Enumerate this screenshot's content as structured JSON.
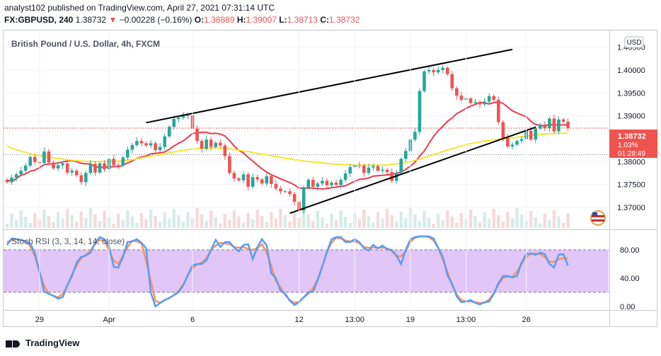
{
  "header": {
    "publish_line": "analyst102 published on TradingView.com, April 27, 2021 07:31:14 UTC",
    "symbol": "FX:GBPUSD, 240",
    "last": "1.38732",
    "change_arrow": "▼",
    "change": "−0.00228 (−0.16%)",
    "o_label": "O:",
    "o_value": "1.38889",
    "h_label": "H:",
    "h_value": "1.39007",
    "l_label": "L:",
    "l_value": "1.38713",
    "c_label": "C:",
    "c_value": "1.38732"
  },
  "footer": {
    "brand": "TradingView"
  },
  "colors": {
    "bull": "#26a69a",
    "bear": "#ef5350",
    "ma_fast": "#ef3a4d",
    "ma_slow": "#f2e635",
    "rsi_k": "#5b9cf6",
    "rsi_d": "#f7935e",
    "rsi_band": "#e1c6f7",
    "trendline": "#000000"
  },
  "chart_data": [
    {
      "type": "candlestick",
      "title": "British Pound / U.S. Dollar, 4h, FXCM",
      "currency_badge": "USD",
      "ylim": [
        1.3655,
        1.4085
      ],
      "y_ticks": [
        "1.40500",
        "1.40000",
        "1.39500",
        "1.39000",
        "1.38000",
        "1.37500",
        "1.37000"
      ],
      "last_price_label": "1.38732",
      "last_change_label": "1.03%",
      "countdown_label": "01:28:49",
      "reference_level": 1.3815,
      "x_tick_labels": [
        {
          "label": "29",
          "index": 7
        },
        {
          "label": "Apr",
          "index": 22
        },
        {
          "label": "6",
          "index": 40
        },
        {
          "label": "12",
          "index": 63
        },
        {
          "label": "13:00",
          "index": 75
        },
        {
          "label": "19",
          "index": 87
        },
        {
          "label": "13:00",
          "index": 99
        },
        {
          "label": "26",
          "index": 112
        }
      ],
      "closes": [
        1.3755,
        1.3765,
        1.3772,
        1.378,
        1.3791,
        1.381,
        1.3799,
        1.3797,
        1.3822,
        1.3798,
        1.3785,
        1.3792,
        1.3796,
        1.3776,
        1.378,
        1.377,
        1.3755,
        1.3775,
        1.3795,
        1.3776,
        1.3796,
        1.3783,
        1.3806,
        1.3792,
        1.3791,
        1.3809,
        1.3826,
        1.3836,
        1.3845,
        1.384,
        1.3835,
        1.384,
        1.3825,
        1.3832,
        1.3855,
        1.3876,
        1.3893,
        1.3896,
        1.39,
        1.3901,
        1.3872,
        1.3845,
        1.3828,
        1.3848,
        1.3832,
        1.3841,
        1.3835,
        1.3812,
        1.3775,
        1.3763,
        1.3759,
        1.3772,
        1.3745,
        1.3766,
        1.3761,
        1.3752,
        1.3768,
        1.3751,
        1.3741,
        1.3735,
        1.3735,
        1.3729,
        1.3712,
        1.3693,
        1.3742,
        1.376,
        1.3745,
        1.3752,
        1.3758,
        1.3748,
        1.3754,
        1.3749,
        1.376,
        1.3774,
        1.3788,
        1.3792,
        1.3791,
        1.3775,
        1.3787,
        1.379,
        1.378,
        1.3782,
        1.3777,
        1.3758,
        1.3776,
        1.3806,
        1.3823,
        1.3848,
        1.3865,
        1.3954,
        1.3997,
        1.4,
        1.3995,
        1.4,
        1.4005,
        1.3991,
        1.396,
        1.3944,
        1.3935,
        1.3938,
        1.3928,
        1.393,
        1.3925,
        1.3931,
        1.3943,
        1.3935,
        1.3886,
        1.3852,
        1.3833,
        1.3837,
        1.3845,
        1.3849,
        1.3867,
        1.3848,
        1.3872,
        1.3881,
        1.3873,
        1.3894,
        1.3866,
        1.3892,
        1.3887,
        1.3873
      ],
      "series": [
        {
          "name": "MA fast",
          "values": [
            1.376,
            1.3756,
            1.3763,
            1.377,
            1.3773,
            1.3779,
            1.3781,
            1.3787,
            1.3793,
            1.3795,
            1.3795,
            1.3797,
            1.3799,
            1.3801,
            1.3802,
            1.38,
            1.3796,
            1.3795,
            1.3795,
            1.3789,
            1.3787,
            1.3788,
            1.3788,
            1.3789,
            1.3789,
            1.3792,
            1.3797,
            1.3801,
            1.3807,
            1.381,
            1.3812,
            1.3817,
            1.3818,
            1.3819,
            1.3821,
            1.3827,
            1.3834,
            1.384,
            1.3845,
            1.3853,
            1.3861,
            1.3863,
            1.3864,
            1.3864,
            1.3861,
            1.3862,
            1.386,
            1.3856,
            1.3846,
            1.3834,
            1.3824,
            1.3819,
            1.3809,
            1.3801,
            1.3792,
            1.3784,
            1.3777,
            1.3771,
            1.3767,
            1.3762,
            1.3758,
            1.3754,
            1.3749,
            1.3742,
            1.3742,
            1.3742,
            1.3742,
            1.3741,
            1.374,
            1.3741,
            1.3743,
            1.3744,
            1.3746,
            1.3747,
            1.3752,
            1.3757,
            1.3761,
            1.3762,
            1.3764,
            1.3768,
            1.3769,
            1.377,
            1.3771,
            1.3772,
            1.3774,
            1.3777,
            1.3783,
            1.379,
            1.3799,
            1.3812,
            1.3823,
            1.3839,
            1.3855,
            1.3867,
            1.3877,
            1.3888,
            1.3895,
            1.3905,
            1.391,
            1.3916,
            1.3921,
            1.3925,
            1.3929,
            1.3928,
            1.3926,
            1.3929,
            1.393,
            1.3927,
            1.3919,
            1.3911,
            1.3906,
            1.3902,
            1.3898,
            1.3888,
            1.3881,
            1.3879,
            1.3878,
            1.3881,
            1.388,
            1.388,
            1.388,
            1.388
          ]
        },
        {
          "name": "MA slow",
          "values": [
            1.3834,
            1.3829,
            1.3826,
            1.3823,
            1.382,
            1.3817,
            1.3815,
            1.3813,
            1.3811,
            1.381,
            1.3808,
            1.3807,
            1.3805,
            1.3804,
            1.3803,
            1.3802,
            1.3801,
            1.3801,
            1.38,
            1.38,
            1.38,
            1.38,
            1.38,
            1.3801,
            1.3801,
            1.3802,
            1.3803,
            1.3804,
            1.3806,
            1.3808,
            1.381,
            1.3812,
            1.3814,
            1.3815,
            1.3817,
            1.3819,
            1.3821,
            1.3823,
            1.3824,
            1.3826,
            1.3827,
            1.3828,
            1.3829,
            1.3829,
            1.383,
            1.383,
            1.3829,
            1.3829,
            1.3828,
            1.3826,
            1.3825,
            1.3823,
            1.3822,
            1.382,
            1.3818,
            1.3816,
            1.3815,
            1.3813,
            1.3811,
            1.3809,
            1.3807,
            1.3806,
            1.3804,
            1.3803,
            1.3801,
            1.38,
            1.3799,
            1.3798,
            1.3797,
            1.3796,
            1.3795,
            1.3794,
            1.3794,
            1.3793,
            1.3793,
            1.3792,
            1.3792,
            1.3792,
            1.3792,
            1.3792,
            1.3792,
            1.3792,
            1.3793,
            1.3794,
            1.3795,
            1.3796,
            1.3798,
            1.38,
            1.3803,
            1.3805,
            1.3809,
            1.3812,
            1.3815,
            1.3818,
            1.3822,
            1.3825,
            1.3828,
            1.3831,
            1.3834,
            1.3837,
            1.3839,
            1.3841,
            1.3843,
            1.3845,
            1.3846,
            1.3848,
            1.3849,
            1.385,
            1.3851,
            1.3852,
            1.3853,
            1.3854,
            1.3855,
            1.3857,
            1.3858,
            1.3859,
            1.386,
            1.3861,
            1.3861,
            1.3862,
            1.3862,
            1.3862
          ]
        }
      ],
      "trendlines": [
        {
          "from": [
            30,
            1.3885
          ],
          "to": [
            109,
            1.4045
          ]
        },
        {
          "from": [
            61,
            1.3687
          ],
          "to": [
            114,
            1.3875
          ]
        }
      ]
    },
    {
      "type": "line",
      "title": "Stoch RSI (3, 3, 14, 14, close)",
      "ylim": [
        -5,
        105
      ],
      "y_ticks": [
        "80.00",
        "40.00",
        "0.00"
      ],
      "bands": [
        20,
        80
      ],
      "series": [
        {
          "name": "%K",
          "values": [
            87,
            96,
            95,
            94,
            92,
            89,
            75,
            49,
            21,
            18,
            15,
            11,
            13,
            30,
            43,
            62,
            70,
            72,
            76,
            90,
            98,
            95,
            85,
            56,
            55,
            70,
            91,
            92,
            95,
            90,
            82,
            20,
            0,
            5,
            9,
            12,
            16,
            20,
            30,
            44,
            58,
            60,
            60,
            65,
            80,
            94,
            84,
            91,
            91,
            83,
            78,
            87,
            88,
            67,
            84,
            95,
            86,
            47,
            40,
            22,
            18,
            8,
            2,
            6,
            13,
            20,
            21,
            37,
            56,
            77,
            95,
            98,
            98,
            91,
            91,
            95,
            91,
            82,
            79,
            87,
            82,
            86,
            81,
            80,
            72,
            60,
            80,
            95,
            98,
            99,
            99,
            99,
            96,
            83,
            70,
            44,
            32,
            14,
            6,
            7,
            9,
            5,
            3,
            6,
            7,
            18,
            33,
            43,
            43,
            41,
            43,
            62,
            74,
            75,
            73,
            76,
            74,
            60,
            55,
            73,
            74,
            58
          ]
        },
        {
          "name": "%D",
          "values": [
            91,
            94,
            95,
            94,
            92,
            85,
            71,
            48,
            29,
            18,
            15,
            13,
            18,
            29,
            45,
            58,
            68,
            73,
            79,
            88,
            94,
            93,
            79,
            65,
            60,
            72,
            84,
            93,
            92,
            89,
            64,
            36,
            8,
            5,
            9,
            12,
            16,
            22,
            31,
            44,
            54,
            59,
            62,
            68,
            80,
            86,
            90,
            89,
            88,
            84,
            83,
            84,
            81,
            80,
            82,
            88,
            76,
            58,
            36,
            27,
            16,
            9,
            5,
            7,
            13,
            18,
            26,
            38,
            57,
            76,
            90,
            97,
            96,
            93,
            92,
            92,
            89,
            84,
            83,
            83,
            83,
            83,
            82,
            78,
            71,
            71,
            78,
            91,
            97,
            99,
            99,
            98,
            93,
            83,
            66,
            49,
            30,
            17,
            9,
            7,
            7,
            6,
            5,
            5,
            10,
            19,
            31,
            40,
            42,
            42,
            49,
            60,
            70,
            74,
            75,
            74,
            70,
            63,
            63,
            67,
            68,
            68
          ]
        }
      ]
    }
  ]
}
